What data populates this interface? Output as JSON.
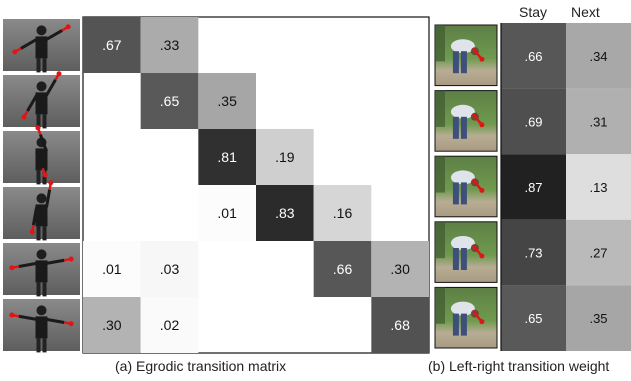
{
  "panel_a": {
    "caption": "(a) Egrodic transition matrix",
    "thumbnails": [
      {
        "icon": "arms-raised-outward-arrows-photo"
      },
      {
        "icon": "arms-lifted-overhead-arrows-photo"
      },
      {
        "icon": "hands-on-head-arrows-photo"
      },
      {
        "icon": "arms-bent-up-arrows-photo"
      },
      {
        "icon": "arms-lowered-outward-arrows-photo"
      },
      {
        "icon": "arms-down-inward-arrows-photo"
      }
    ]
  },
  "panel_b": {
    "caption": "(b) Left-right transition weight",
    "thumbnails": [
      {
        "icon": "bending-person-photo-1"
      },
      {
        "icon": "bending-person-photo-2"
      },
      {
        "icon": "bending-person-photo-3"
      },
      {
        "icon": "bending-person-photo-4"
      },
      {
        "icon": "bending-person-photo-5"
      }
    ]
  },
  "chart_data": [
    {
      "type": "heatmap",
      "title": "",
      "rows": 6,
      "cols": 6,
      "cells": [
        {
          "row": 0,
          "col": 0,
          "value": 0.67,
          "label": ".67"
        },
        {
          "row": 0,
          "col": 1,
          "value": 0.33,
          "label": ".33"
        },
        {
          "row": 1,
          "col": 1,
          "value": 0.65,
          "label": ".65"
        },
        {
          "row": 1,
          "col": 2,
          "value": 0.35,
          "label": ".35"
        },
        {
          "row": 2,
          "col": 2,
          "value": 0.81,
          "label": ".81"
        },
        {
          "row": 2,
          "col": 3,
          "value": 0.19,
          "label": ".19"
        },
        {
          "row": 3,
          "col": 2,
          "value": 0.01,
          "label": ".01"
        },
        {
          "row": 3,
          "col": 3,
          "value": 0.83,
          "label": ".83"
        },
        {
          "row": 3,
          "col": 4,
          "value": 0.16,
          "label": ".16"
        },
        {
          "row": 4,
          "col": 0,
          "value": 0.01,
          "label": ".01"
        },
        {
          "row": 4,
          "col": 1,
          "value": 0.03,
          "label": ".03"
        },
        {
          "row": 4,
          "col": 4,
          "value": 0.66,
          "label": ".66"
        },
        {
          "row": 4,
          "col": 5,
          "value": 0.3,
          "label": ".30"
        },
        {
          "row": 5,
          "col": 0,
          "value": 0.3,
          "label": ".30"
        },
        {
          "row": 5,
          "col": 1,
          "value": 0.02,
          "label": ".02"
        },
        {
          "row": 5,
          "col": 5,
          "value": 0.68,
          "label": ".68"
        }
      ]
    },
    {
      "type": "heatmap",
      "title": "",
      "columns": [
        "Stay",
        "Next"
      ],
      "rows": [
        {
          "stay": 0.66,
          "stay_label": ".66",
          "next": 0.34,
          "next_label": ".34"
        },
        {
          "stay": 0.69,
          "stay_label": ".69",
          "next": 0.31,
          "next_label": ".31"
        },
        {
          "stay": 0.87,
          "stay_label": ".87",
          "next": 0.13,
          "next_label": ".13"
        },
        {
          "stay": 0.73,
          "stay_label": ".73",
          "next": 0.27,
          "next_label": ".27"
        },
        {
          "stay": 0.65,
          "stay_label": ".65",
          "next": 0.35,
          "next_label": ".35"
        }
      ]
    }
  ]
}
